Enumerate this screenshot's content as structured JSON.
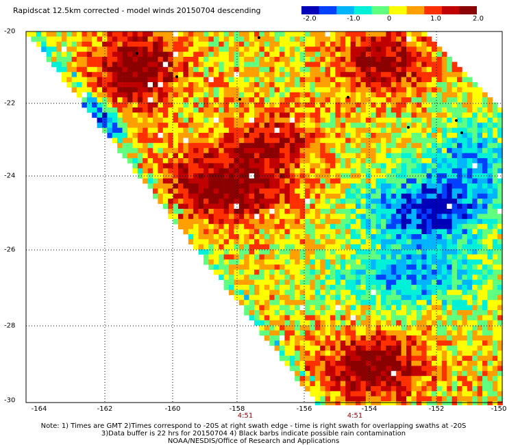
{
  "title": "Rapidscat 12.5km corrected - model winds 20150704 descending",
  "colorbar": {
    "ticks": [
      "-2.0",
      "-1.0",
      "0",
      "1.0",
      "2.0"
    ],
    "colors": [
      "#0000b8",
      "#0040ff",
      "#00b4ff",
      "#00f0d8",
      "#60ff80",
      "#ffff00",
      "#ffa000",
      "#ff3000",
      "#c00000",
      "#8b0000"
    ]
  },
  "map": {
    "lat_labels": [
      "-20",
      "-22",
      "-24",
      "-26",
      "-28",
      "-30"
    ],
    "lon_labels": [
      "-164",
      "-162",
      "-160",
      "-158",
      "-156",
      "-154",
      "-152",
      "-150"
    ],
    "time_labels": [
      "4:51",
      "4:51"
    ],
    "no_data_color": "#ffffff"
  },
  "notes": {
    "line1": "Note: 1) Times are GMT 2)Times correspond to -20S at right swath edge - time is right swath for overlapping swaths at -20S",
    "line2": "3)Data buffer is 22 hrs for 20150704 4) Black barbs indicate possible rain contamination",
    "line3": "NOAA/NESDIS/Office of Research and Applications"
  }
}
